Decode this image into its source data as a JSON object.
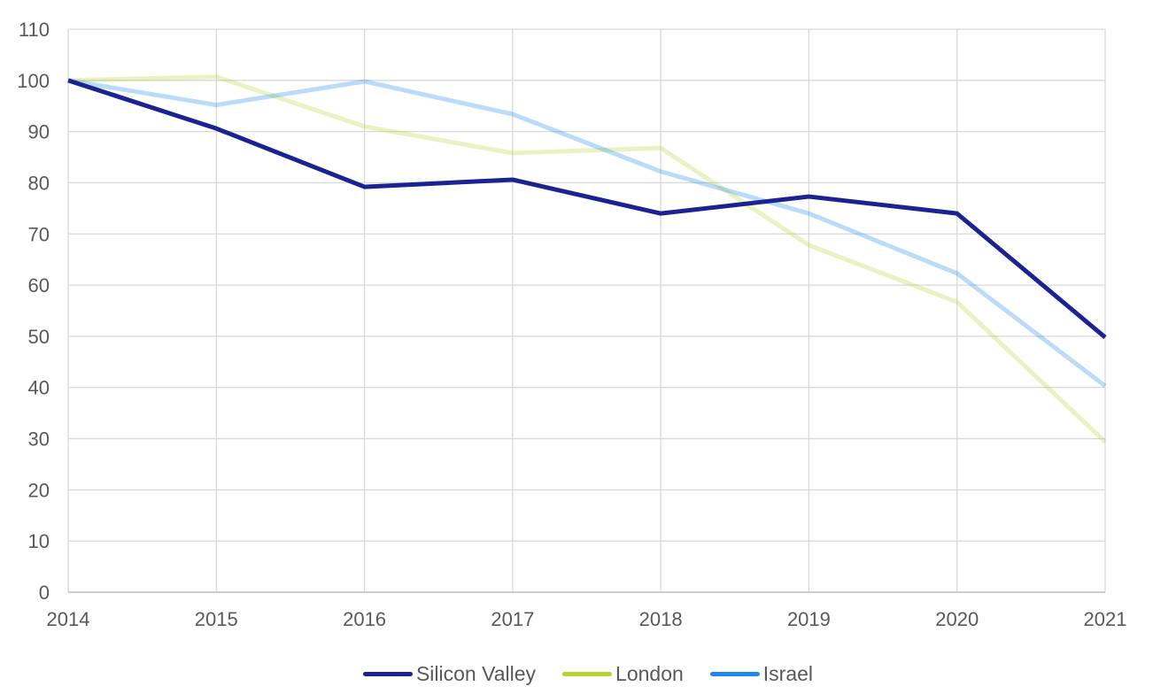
{
  "chart_data": {
    "type": "line",
    "title": "",
    "xlabel": "",
    "ylabel": "",
    "x": [
      "2014",
      "2015",
      "2016",
      "2017",
      "2018",
      "2019",
      "2020",
      "2021"
    ],
    "ylim": [
      0,
      110
    ],
    "yticks": [
      "0",
      "10",
      "20",
      "30",
      "40",
      "50",
      "60",
      "70",
      "80",
      "90",
      "100",
      "110"
    ],
    "grid": true,
    "legend_position": "bottom",
    "series": [
      {
        "name": "Silicon Valley",
        "color": "#1a2391",
        "line_opacity": 1,
        "values": [
          100,
          90.6,
          79.2,
          80.6,
          74.0,
          77.3,
          74.0,
          49.8
        ]
      },
      {
        "name": "London",
        "color": "#b5d334",
        "line_opacity": 0.3,
        "values": [
          100,
          100.7,
          91.0,
          85.8,
          86.8,
          67.8,
          56.7,
          29.4
        ]
      },
      {
        "name": "Israel",
        "color": "#1e88f0",
        "line_opacity": 0.3,
        "values": [
          100,
          95.2,
          99.8,
          93.4,
          82.2,
          74.0,
          62.3,
          40.3
        ]
      }
    ]
  }
}
